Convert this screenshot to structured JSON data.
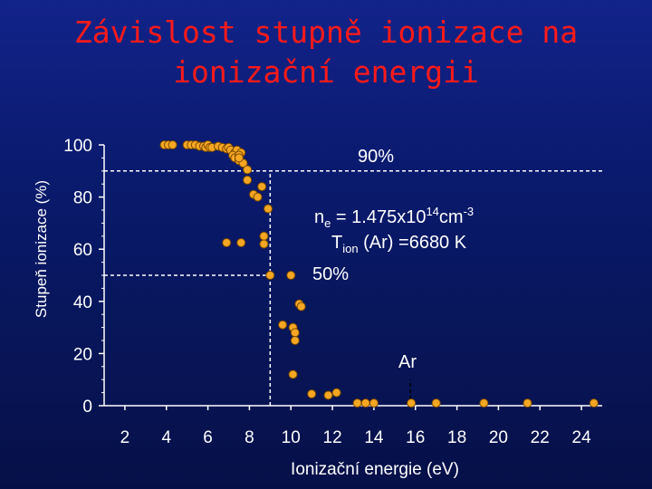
{
  "title_line1": "Závislost stupně ionizace na",
  "title_line2": "ionizační energii",
  "chart_data": {
    "type": "scatter",
    "ylabel": "Stupeň ionizace (%)",
    "xlabel": "Ionizační energie (eV)",
    "xlim": [
      1,
      25
    ],
    "ylim": [
      0,
      100
    ],
    "x_ticks": [
      2,
      4,
      6,
      8,
      10,
      12,
      14,
      16,
      18,
      20,
      22,
      24
    ],
    "y_ticks": [
      0,
      20,
      40,
      60,
      80,
      100
    ],
    "grid": false,
    "marker_color": "#f5a623",
    "marker_edge": "#7a4a00",
    "annotations": {
      "label_90": "90%",
      "label_50": "50%",
      "ne_base": "n",
      "ne_sub": "e",
      "ne_eq": " = 1.475x10",
      "ne_exp": "14",
      "ne_unit": "cm",
      "ne_unit_exp": "-3",
      "t_base": "T",
      "t_sub": "ion",
      "t_rest": " (Ar) =6680 K",
      "ar_label": "Ar",
      "ar_x": 15.76
    },
    "ref_lines": [
      {
        "y": 90,
        "x_from": 1,
        "x_to": 25
      },
      {
        "y": 50,
        "x_from": 1,
        "x_to": 9
      },
      {
        "x": 9,
        "y_from": 0,
        "y_to": 90
      },
      {
        "x": 15.76,
        "y_from": 0,
        "y_to": 10
      }
    ],
    "points": [
      [
        3.9,
        100
      ],
      [
        4.1,
        100
      ],
      [
        4.3,
        100
      ],
      [
        5.0,
        100
      ],
      [
        5.2,
        100
      ],
      [
        5.4,
        100
      ],
      [
        5.6,
        99.5
      ],
      [
        5.8,
        99.5
      ],
      [
        5.9,
        99
      ],
      [
        6.0,
        100
      ],
      [
        6.1,
        99
      ],
      [
        6.2,
        99
      ],
      [
        6.5,
        99.5
      ],
      [
        6.7,
        99
      ],
      [
        6.9,
        98.5
      ],
      [
        7.0,
        99
      ],
      [
        7.1,
        98
      ],
      [
        7.3,
        97
      ],
      [
        7.4,
        98
      ],
      [
        7.6,
        97
      ],
      [
        7.2,
        96
      ],
      [
        7.3,
        95
      ],
      [
        7.5,
        94
      ],
      [
        7.5,
        96
      ],
      [
        7.7,
        93
      ],
      [
        7.9,
        90.5
      ],
      [
        7.9,
        86.5
      ],
      [
        8.6,
        84
      ],
      [
        7.5,
        95
      ],
      [
        8.2,
        81
      ],
      [
        8.4,
        80
      ],
      [
        8.9,
        75.5
      ],
      [
        6.9,
        62.5
      ],
      [
        7.6,
        62.5
      ],
      [
        8.7,
        65
      ],
      [
        8.7,
        62
      ],
      [
        9.0,
        50
      ],
      [
        10.0,
        50
      ],
      [
        10.4,
        39
      ],
      [
        10.5,
        38
      ],
      [
        9.6,
        31
      ],
      [
        10.1,
        30
      ],
      [
        10.2,
        28
      ],
      [
        10.2,
        25
      ],
      [
        10.1,
        12
      ],
      [
        11.0,
        4.5
      ],
      [
        11.8,
        4
      ],
      [
        12.2,
        5
      ],
      [
        13.2,
        1
      ],
      [
        13.6,
        1
      ],
      [
        14.0,
        1
      ],
      [
        15.8,
        1
      ],
      [
        17.0,
        1
      ],
      [
        19.3,
        1
      ],
      [
        21.4,
        1
      ],
      [
        24.6,
        1
      ]
    ]
  }
}
